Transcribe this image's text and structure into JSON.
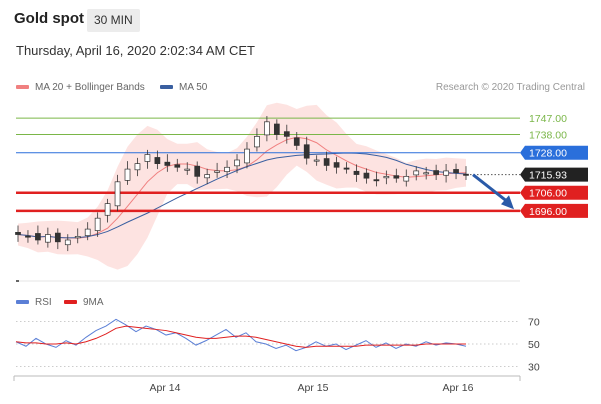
{
  "header": {
    "title": "Gold spot",
    "interval": "30 MIN",
    "datetime": "Thursday, April 16, 2020 2:02:34 AM CET"
  },
  "legend": {
    "ma20_label": "MA 20 + Bollinger Bands",
    "ma50_label": "MA 50",
    "credit": "Research © 2020 Trading Central",
    "rsi_label": "RSI",
    "rsi_ma_label": "9MA"
  },
  "colors": {
    "ma20": "#f08080",
    "bands": "#fde0de",
    "ma50": "#3a5fa0",
    "resistance_green": "#7ab648",
    "pivot_blue": "#2a6fdb",
    "support_red": "#e02020",
    "arrow": "#2a5aa8",
    "rsi": "#5b7fd6",
    "rsi_ma": "#e02020"
  },
  "chart_data": {
    "type": "candlestick",
    "x_ticks": [
      "Apr 14",
      "Apr 15",
      "Apr 16"
    ],
    "ylim": [
      1658,
      1757
    ],
    "levels": [
      {
        "value": 1747.0,
        "label": "1747.00",
        "kind": "resistance"
      },
      {
        "value": 1738.0,
        "label": "1738.00",
        "kind": "resistance"
      },
      {
        "value": 1728.0,
        "label": "1728.00",
        "kind": "pivot"
      },
      {
        "value": 1706.0,
        "label": "1706.00",
        "kind": "support"
      },
      {
        "value": 1696.0,
        "label": "1696.00",
        "kind": "support"
      }
    ],
    "last_price": {
      "value": 1715.93,
      "label": "1715.93"
    },
    "price_path": [
      1683,
      1682,
      1680,
      1683,
      1679,
      1680,
      1682,
      1686,
      1692,
      1700,
      1712,
      1719,
      1722,
      1727,
      1722,
      1721,
      1720,
      1719,
      1715,
      1716,
      1718,
      1720,
      1724,
      1730,
      1737,
      1745,
      1738,
      1737,
      1732,
      1725,
      1724,
      1721,
      1720,
      1719,
      1716,
      1714,
      1713,
      1715,
      1714,
      1715,
      1718,
      1717,
      1716,
      1718,
      1717,
      1716
    ],
    "rsi": {
      "ticks": [
        70,
        50,
        30
      ],
      "ylim": [
        25,
        75
      ],
      "rsi_values": [
        52,
        48,
        55,
        50,
        47,
        53,
        49,
        56,
        62,
        66,
        72,
        67,
        61,
        66,
        63,
        58,
        60,
        55,
        49,
        53,
        58,
        63,
        56,
        60,
        52,
        50,
        46,
        49,
        44,
        47,
        52,
        48,
        50,
        45,
        49,
        53,
        47,
        51,
        46,
        50,
        48,
        52,
        49,
        51,
        50,
        48
      ],
      "ma_values": [
        52,
        51,
        51,
        50,
        50,
        51,
        50,
        52,
        55,
        59,
        64,
        66,
        65,
        64,
        63,
        62,
        60,
        58,
        56,
        55,
        55,
        56,
        57,
        57,
        56,
        54,
        52,
        50,
        48,
        47,
        48,
        48,
        48,
        48,
        48,
        49,
        49,
        49,
        49,
        49,
        49,
        50,
        50,
        50,
        50,
        50
      ]
    }
  }
}
